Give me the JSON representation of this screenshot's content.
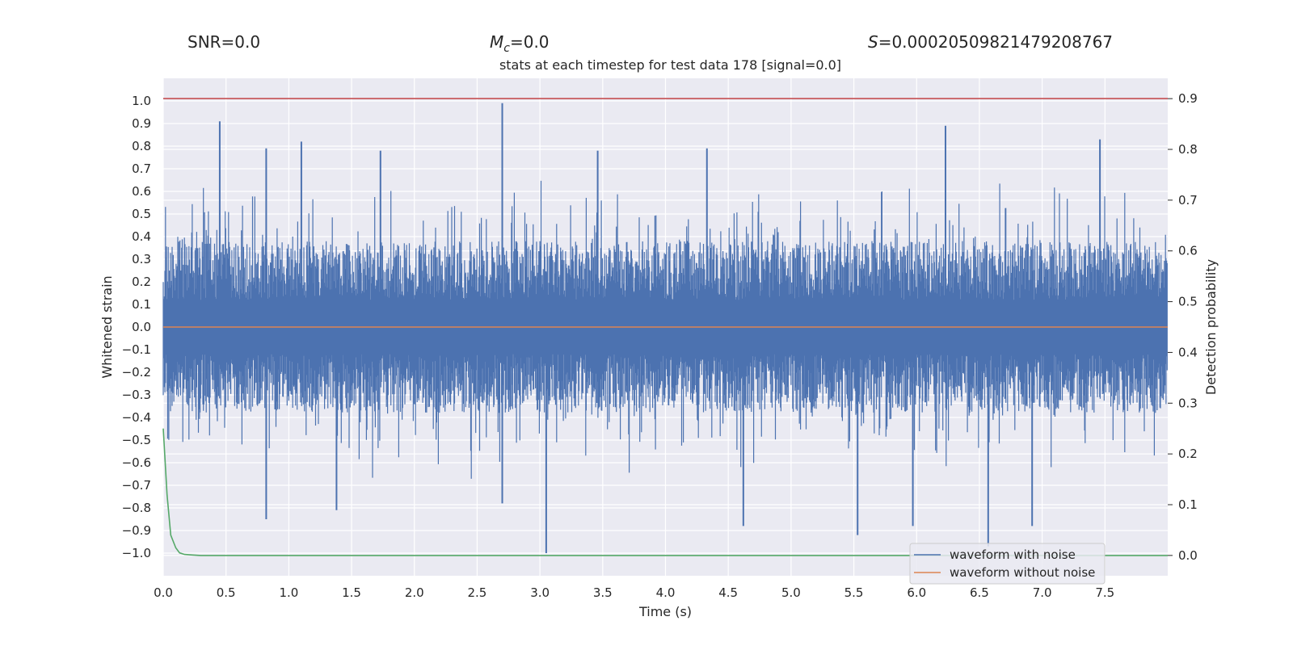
{
  "header": {
    "snr": "SNR=0.0",
    "mc_symbol": "M",
    "mc_subscript": "c",
    "mc_value": "=0.0",
    "s_symbol": "S",
    "s_value": "=0.00020509821479208767"
  },
  "chart_data": {
    "type": "line",
    "title": "stats at each timestep for test data 178 [signal=0.0]",
    "xlabel": "Time (s)",
    "ylabel": "Whitened strain",
    "y2label": "Detection probability",
    "xlim": [
      0.0,
      8.0
    ],
    "ylim": [
      -1.1,
      1.1
    ],
    "y2lim": [
      -0.04,
      0.94
    ],
    "x_ticks": [
      0.0,
      0.5,
      1.0,
      1.5,
      2.0,
      2.5,
      3.0,
      3.5,
      4.0,
      4.5,
      5.0,
      5.5,
      6.0,
      6.5,
      7.0,
      7.5
    ],
    "x_tick_labels": [
      "0.0",
      "0.5",
      "1.0",
      "1.5",
      "2.0",
      "2.5",
      "3.0",
      "3.5",
      "4.0",
      "4.5",
      "5.0",
      "5.5",
      "6.0",
      "6.5",
      "7.0",
      "7.5"
    ],
    "y_ticks": [
      -1.0,
      -0.9,
      -0.8,
      -0.7,
      -0.6,
      -0.5,
      -0.4,
      -0.3,
      -0.2,
      -0.1,
      0.0,
      0.1,
      0.2,
      0.3,
      0.4,
      0.5,
      0.6,
      0.7,
      0.8,
      0.9,
      1.0
    ],
    "y_tick_labels": [
      "−1.0",
      "−0.9",
      "−0.8",
      "−0.7",
      "−0.6",
      "−0.5",
      "−0.4",
      "−0.3",
      "−0.2",
      "−0.1",
      "0.0",
      "0.1",
      "0.2",
      "0.3",
      "0.4",
      "0.5",
      "0.6",
      "0.7",
      "0.8",
      "0.9",
      "1.0"
    ],
    "y2_ticks": [
      0.0,
      0.1,
      0.2,
      0.3,
      0.4,
      0.5,
      0.6,
      0.7,
      0.8,
      0.9
    ],
    "y2_tick_labels": [
      "0.0",
      "0.1",
      "0.2",
      "0.3",
      "0.4",
      "0.5",
      "0.6",
      "0.7",
      "0.8",
      "0.9"
    ],
    "grid": true,
    "legend_position": "bottom-right",
    "series": [
      {
        "name": "waveform with noise",
        "color": "#4c72b0",
        "axis": "left",
        "description": "dense whitened-strain noise trace over the full time range",
        "band_typical": [
          -0.5,
          0.5
        ],
        "peaks": [
          {
            "x": 0.45,
            "y": 0.91
          },
          {
            "x": 0.82,
            "y": 0.79
          },
          {
            "x": 1.1,
            "y": 0.82
          },
          {
            "x": 1.73,
            "y": 0.78
          },
          {
            "x": 2.7,
            "y": 0.99
          },
          {
            "x": 3.46,
            "y": 0.78
          },
          {
            "x": 4.33,
            "y": 0.79
          },
          {
            "x": 6.23,
            "y": 0.89
          },
          {
            "x": 7.46,
            "y": 0.83
          }
        ],
        "troughs": [
          {
            "x": 0.82,
            "y": -0.85
          },
          {
            "x": 1.38,
            "y": -0.81
          },
          {
            "x": 2.7,
            "y": -0.78
          },
          {
            "x": 3.05,
            "y": -1.0
          },
          {
            "x": 4.62,
            "y": -0.88
          },
          {
            "x": 5.53,
            "y": -0.92
          },
          {
            "x": 5.97,
            "y": -0.88
          },
          {
            "x": 6.57,
            "y": -0.97
          },
          {
            "x": 6.92,
            "y": -0.88
          }
        ]
      },
      {
        "name": "waveform without noise",
        "color": "#dd8452",
        "axis": "left",
        "x": [
          0.0,
          8.0
        ],
        "y": [
          0.0,
          0.0
        ]
      },
      {
        "name": "detection probability",
        "color": "#55a868",
        "axis": "right",
        "in_legend": false,
        "x": [
          0.0,
          0.03,
          0.06,
          0.1,
          0.13,
          0.17,
          0.22,
          0.3,
          0.5,
          1.0,
          8.0
        ],
        "y": [
          0.25,
          0.12,
          0.04,
          0.015,
          0.005,
          0.002,
          0.001,
          0.0,
          0.0,
          0.0,
          0.0
        ]
      },
      {
        "name": "threshold",
        "color": "#c44e52",
        "axis": "right",
        "in_legend": false,
        "x": [
          0.0,
          8.0
        ],
        "y": [
          0.9,
          0.9
        ]
      }
    ]
  }
}
